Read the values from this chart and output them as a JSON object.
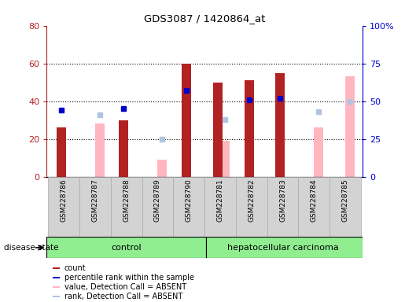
{
  "title": "GDS3087 / 1420864_at",
  "samples": [
    "GSM228786",
    "GSM228787",
    "GSM228788",
    "GSM228789",
    "GSM228790",
    "GSM228781",
    "GSM228782",
    "GSM228783",
    "GSM228784",
    "GSM228785"
  ],
  "count": [
    26,
    null,
    30,
    null,
    60,
    50,
    51,
    55,
    null,
    null
  ],
  "percentile_rank": [
    44,
    null,
    45,
    null,
    57,
    null,
    51,
    52,
    null,
    null
  ],
  "value_absent": [
    null,
    28,
    null,
    9,
    null,
    19,
    null,
    null,
    26,
    53
  ],
  "rank_absent": [
    null,
    41,
    null,
    25,
    null,
    38,
    null,
    null,
    43,
    50
  ],
  "ylim_left": [
    0,
    80
  ],
  "ylim_right": [
    0,
    100
  ],
  "yticks_left": [
    0,
    20,
    40,
    60,
    80
  ],
  "yticks_right": [
    0,
    25,
    50,
    75,
    100
  ],
  "ytick_labels_right": [
    "0",
    "25",
    "50",
    "75",
    "100%"
  ],
  "color_count": "#b22222",
  "color_percentile": "#0000cc",
  "color_value_absent": "#ffb6c1",
  "color_rank_absent": "#b0c4de",
  "control_bg": "#90ee90",
  "carcinoma_bg": "#90ee90",
  "group_label_control": "control",
  "group_label_carcinoma": "hepatocellular carcinoma",
  "disease_state_label": "disease state",
  "legend_items": [
    "count",
    "percentile rank within the sample",
    "value, Detection Call = ABSENT",
    "rank, Detection Call = ABSENT"
  ],
  "n_control": 5,
  "n_total": 10
}
